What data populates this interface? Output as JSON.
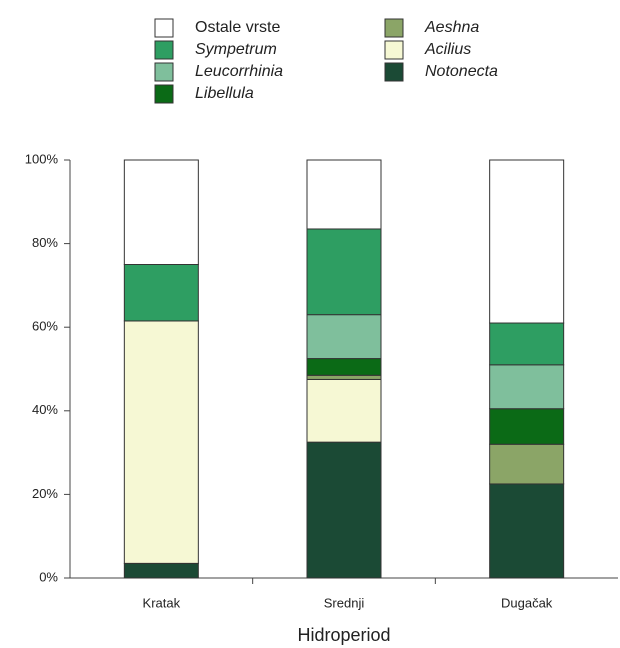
{
  "chart_data": {
    "type": "stacked_bar",
    "x_label": "Hidroperiod",
    "categories": [
      "Kratak",
      "Srednji",
      "Dugačak"
    ],
    "series": [
      {
        "name": "Ostale vrste",
        "color": "#ffffff",
        "values": [
          25,
          16.5,
          39
        ]
      },
      {
        "name": "Sympetrum",
        "color": "#2e9e62",
        "values": [
          13.5,
          20.5,
          10
        ]
      },
      {
        "name": "Leucorrhinia",
        "color": "#7fbf9c",
        "values": [
          0,
          10.5,
          10.5
        ]
      },
      {
        "name": "Libellula",
        "color": "#0b6a16",
        "values": [
          0,
          4,
          8.5
        ]
      },
      {
        "name": "Aeshna",
        "color": "#8ba567",
        "values": [
          0,
          1,
          9.5
        ]
      },
      {
        "name": "Acilius",
        "color": "#f6f8d4",
        "values": [
          58,
          15,
          0
        ]
      },
      {
        "name": "Notonecta",
        "color": "#1b4a35",
        "values": [
          3.5,
          32.5,
          22.5
        ]
      }
    ],
    "ylim": [
      0,
      100
    ],
    "yticks": [
      {
        "value": 0,
        "label": "0%"
      },
      {
        "value": 20,
        "label": "20%"
      },
      {
        "value": 40,
        "label": "40%"
      },
      {
        "value": 60,
        "label": "60%"
      },
      {
        "value": 80,
        "label": "80%"
      },
      {
        "value": 100,
        "label": "100%"
      }
    ]
  }
}
